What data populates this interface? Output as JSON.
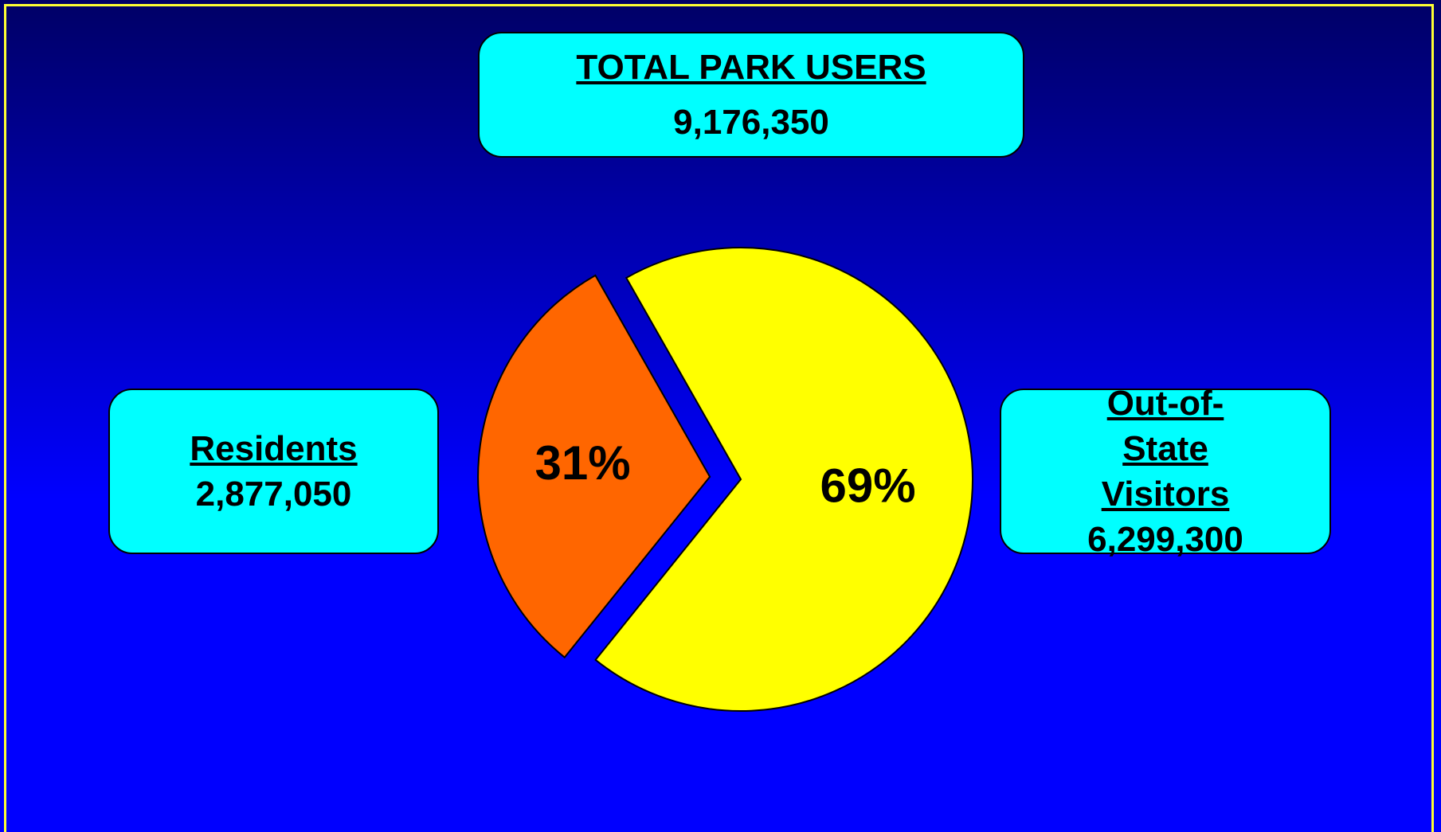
{
  "chart_data": {
    "type": "pie",
    "title": "TOTAL PARK USERS",
    "total": "9,176,350",
    "categories": [
      "Residents",
      "Out-of-State Visitors"
    ],
    "values": [
      31,
      69
    ],
    "value_labels": [
      "31%",
      "69%"
    ],
    "counts": [
      "2,877,050",
      "6,299,300"
    ],
    "colors": [
      "#ff6600",
      "#ffff00"
    ],
    "exploded": [
      true,
      false
    ]
  }
}
